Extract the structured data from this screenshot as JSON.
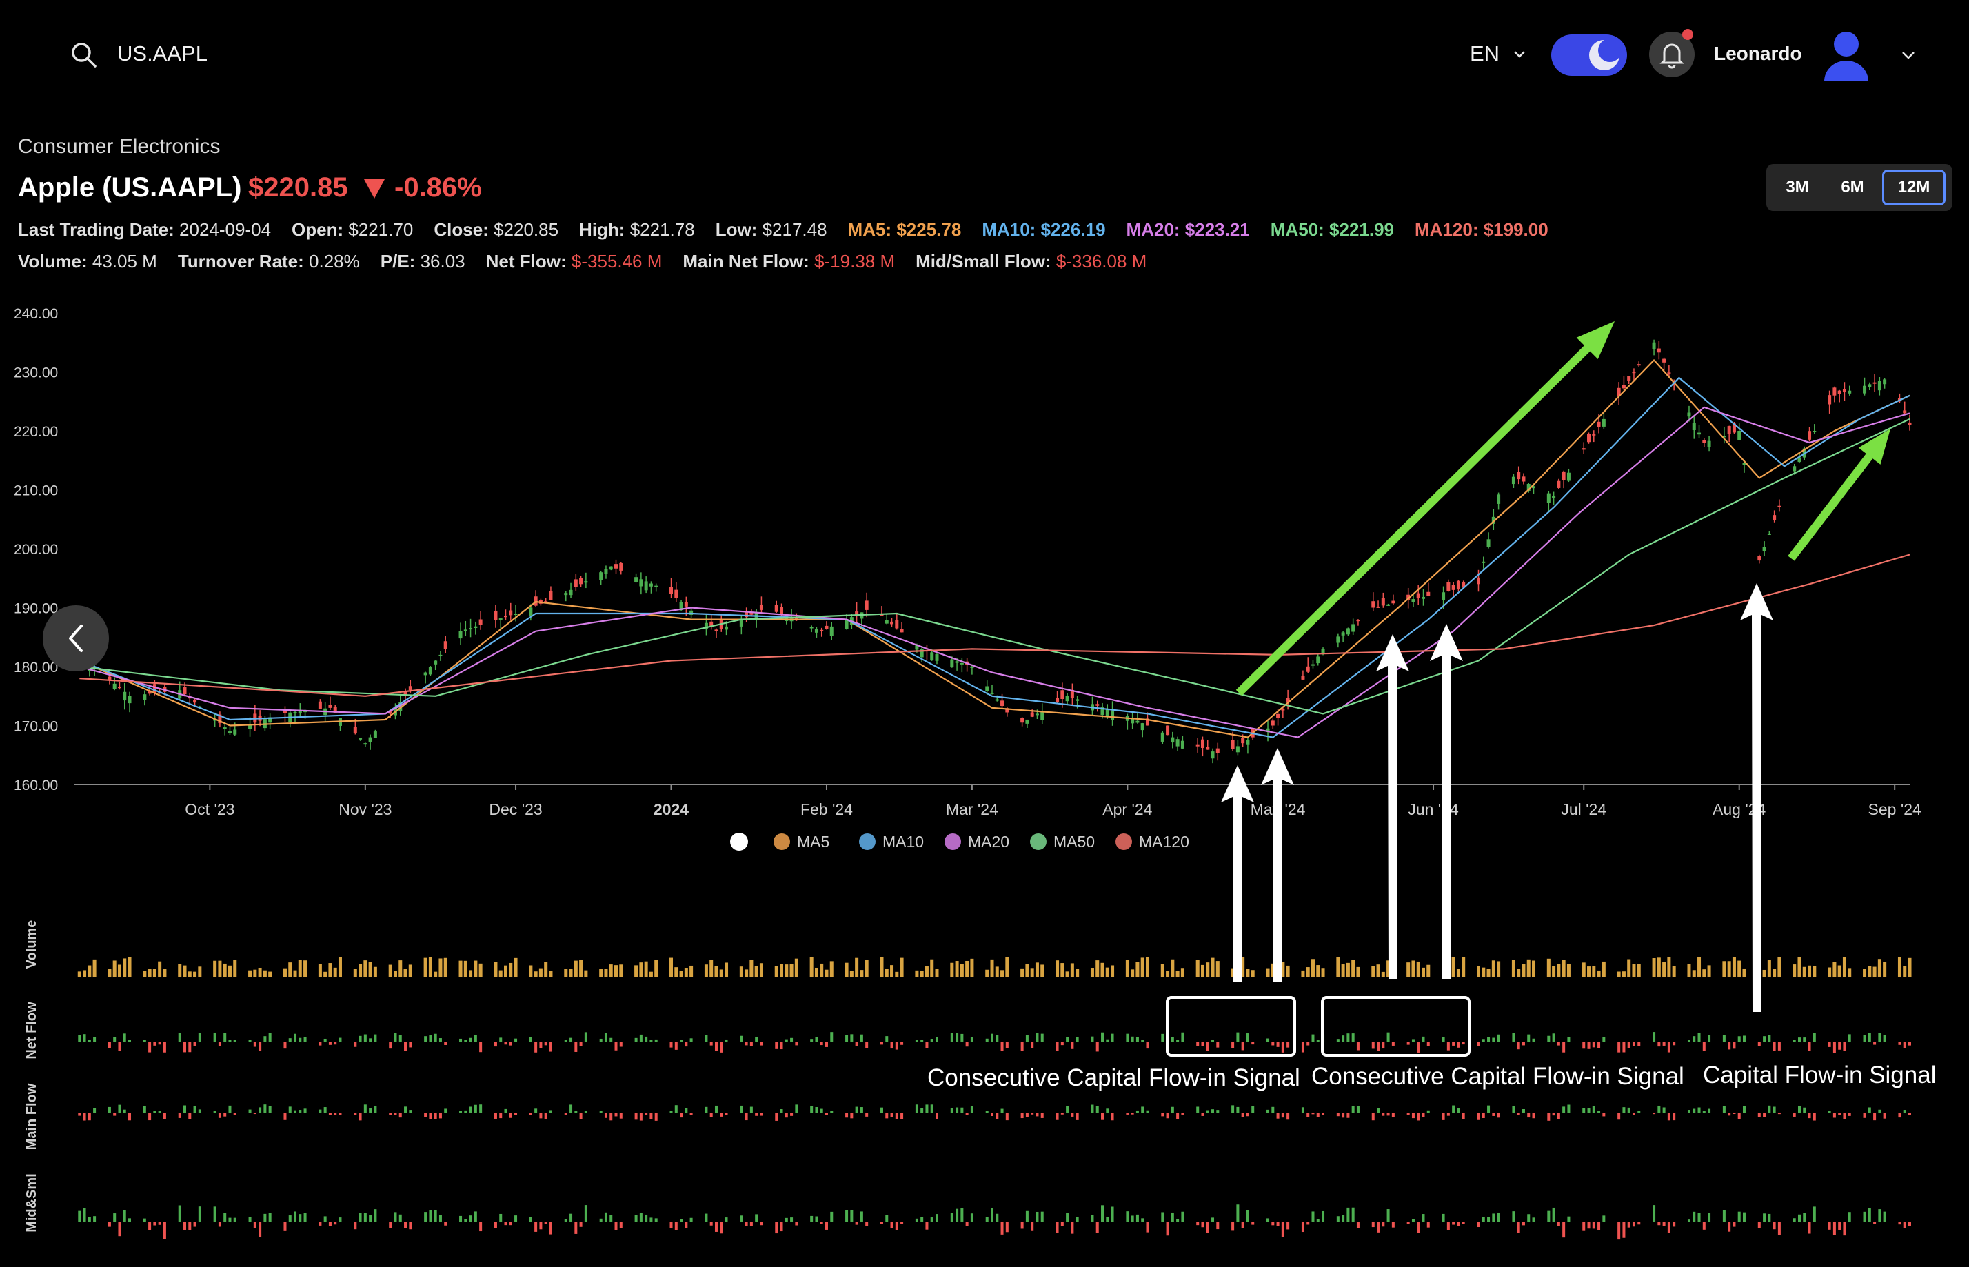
{
  "topbar": {
    "search_value": "US.AAPL",
    "language": "EN",
    "username": "Leonardo",
    "icons": [
      "search-icon",
      "chevron-down-icon",
      "moon-icon",
      "bell-icon",
      "avatar-icon",
      "chevron-down-icon"
    ]
  },
  "header": {
    "category": "Consumer Electronics",
    "title": "Apple (US.AAPL)",
    "price": "$220.85",
    "change": "-0.86%",
    "stats_row1": [
      {
        "label": "Last Trading Date:",
        "value": "2024-09-04"
      },
      {
        "label": "Open:",
        "value": "$221.70"
      },
      {
        "label": "Close:",
        "value": "$220.85"
      },
      {
        "label": "High:",
        "value": "$221.78"
      },
      {
        "label": "Low:",
        "value": "$217.48"
      }
    ],
    "ma_row": [
      {
        "text": "MA5: $225.78",
        "color": "#f0a14e"
      },
      {
        "text": "MA10: $226.19",
        "color": "#63b3ed"
      },
      {
        "text": "MA20: $223.21",
        "color": "#d67ee8"
      },
      {
        "text": "MA50: $221.99",
        "color": "#7bd88f"
      },
      {
        "text": "MA120: $199.00",
        "color": "#f07167"
      }
    ],
    "stats_row2": [
      {
        "label": "Volume:",
        "value": "43.05 M",
        "color": "#e0e0e0"
      },
      {
        "label": "Turnover Rate:",
        "value": "0.28%",
        "color": "#e0e0e0"
      },
      {
        "label": "P/E:",
        "value": "36.03",
        "color": "#e0e0e0"
      },
      {
        "label": "Net Flow:",
        "value": "$-355.46 M",
        "color": "#ef5350"
      },
      {
        "label": "Main Net Flow:",
        "value": "$-19.38 M",
        "color": "#ef5350"
      },
      {
        "label": "Mid/Small Flow:",
        "value": "$-336.08 M",
        "color": "#ef5350"
      }
    ]
  },
  "range_selector": {
    "options": [
      "3M",
      "6M",
      "12M"
    ],
    "selected": "12M"
  },
  "chart_data": {
    "type": "line",
    "title": "",
    "ylim": [
      160,
      240
    ],
    "y_ticks": [
      "240.00",
      "230.00",
      "220.00",
      "210.00",
      "200.00",
      "190.00",
      "180.00",
      "170.00",
      "160.00"
    ],
    "x_ticks": [
      "Oct '23",
      "Nov '23",
      "Dec '23",
      "2024",
      "Feb '24",
      "Mar '24",
      "Apr '24",
      "May '24",
      "Jun '24",
      "Jul '24",
      "Aug '24",
      "Sep '24"
    ],
    "x_tick_dates": [
      "2023-10-01",
      "2023-11-01",
      "2023-12-01",
      "2024-01-01",
      "2024-02-01",
      "2024-03-01",
      "2024-04-01",
      "2024-05-01",
      "2024-06-01",
      "2024-07-01",
      "2024-08-01",
      "2024-09-01"
    ],
    "date_range": [
      "2023-09-04",
      "2024-09-04"
    ],
    "price_points": [
      [
        "2023-09-05",
        182
      ],
      [
        "2023-09-15",
        175
      ],
      [
        "2023-09-25",
        176
      ],
      [
        "2023-10-05",
        169
      ],
      [
        "2023-10-15",
        172
      ],
      [
        "2023-10-25",
        173
      ],
      [
        "2023-11-01",
        167
      ],
      [
        "2023-11-10",
        176
      ],
      [
        "2023-11-20",
        186
      ],
      [
        "2023-12-01",
        189
      ],
      [
        "2023-12-10",
        192
      ],
      [
        "2023-12-20",
        197
      ],
      [
        "2023-12-31",
        193
      ],
      [
        "2024-01-10",
        186
      ],
      [
        "2024-01-20",
        190
      ],
      [
        "2024-01-31",
        186
      ],
      [
        "2024-02-10",
        190
      ],
      [
        "2024-02-20",
        183
      ],
      [
        "2024-03-01",
        180
      ],
      [
        "2024-03-10",
        170
      ],
      [
        "2024-03-20",
        175
      ],
      [
        "2024-03-31",
        172
      ],
      [
        "2024-04-10",
        168
      ],
      [
        "2024-04-20",
        165
      ],
      [
        "2024-04-30",
        170
      ],
      [
        "2024-05-10",
        183
      ],
      [
        "2024-05-20",
        190
      ],
      [
        "2024-05-31",
        192
      ],
      [
        "2024-06-10",
        194
      ],
      [
        "2024-06-15",
        213
      ],
      [
        "2024-06-25",
        209
      ],
      [
        "2024-07-05",
        222
      ],
      [
        "2024-07-15",
        235
      ],
      [
        "2024-07-25",
        218
      ],
      [
        "2024-08-01",
        220
      ],
      [
        "2024-08-05",
        198
      ],
      [
        "2024-08-12",
        214
      ],
      [
        "2024-08-20",
        226
      ],
      [
        "2024-08-31",
        229
      ],
      [
        "2024-09-04",
        221
      ]
    ],
    "series": [
      {
        "name": "MA5",
        "color": "#f0a14e",
        "points": [
          [
            "2023-09-05",
            181
          ],
          [
            "2023-10-05",
            170
          ],
          [
            "2023-11-05",
            171
          ],
          [
            "2023-12-05",
            191
          ],
          [
            "2024-01-05",
            188
          ],
          [
            "2024-02-05",
            188
          ],
          [
            "2024-03-05",
            173
          ],
          [
            "2024-04-05",
            171
          ],
          [
            "2024-04-25",
            168
          ],
          [
            "2024-05-25",
            190
          ],
          [
            "2024-06-20",
            210
          ],
          [
            "2024-07-15",
            232
          ],
          [
            "2024-08-05",
            212
          ],
          [
            "2024-08-20",
            220
          ],
          [
            "2024-09-04",
            226
          ]
        ]
      },
      {
        "name": "MA10",
        "color": "#63b3ed",
        "points": [
          [
            "2023-09-05",
            181
          ],
          [
            "2023-10-05",
            171
          ],
          [
            "2023-11-05",
            172
          ],
          [
            "2023-12-05",
            189
          ],
          [
            "2024-01-05",
            189
          ],
          [
            "2024-02-05",
            188
          ],
          [
            "2024-03-05",
            175
          ],
          [
            "2024-04-05",
            172
          ],
          [
            "2024-04-30",
            168
          ],
          [
            "2024-05-31",
            188
          ],
          [
            "2024-06-25",
            207
          ],
          [
            "2024-07-20",
            229
          ],
          [
            "2024-08-10",
            214
          ],
          [
            "2024-08-25",
            222
          ],
          [
            "2024-09-04",
            226
          ]
        ]
      },
      {
        "name": "MA20",
        "color": "#d67ee8",
        "points": [
          [
            "2023-09-05",
            180
          ],
          [
            "2023-10-05",
            173
          ],
          [
            "2023-11-05",
            172
          ],
          [
            "2023-12-05",
            186
          ],
          [
            "2024-01-05",
            190
          ],
          [
            "2024-02-05",
            188
          ],
          [
            "2024-03-05",
            179
          ],
          [
            "2024-04-05",
            173
          ],
          [
            "2024-05-05",
            168
          ],
          [
            "2024-06-05",
            186
          ],
          [
            "2024-06-30",
            206
          ],
          [
            "2024-07-25",
            224
          ],
          [
            "2024-08-15",
            218
          ],
          [
            "2024-09-04",
            223
          ]
        ]
      },
      {
        "name": "MA50",
        "color": "#7bd88f",
        "points": [
          [
            "2023-09-05",
            180
          ],
          [
            "2023-10-15",
            176
          ],
          [
            "2023-11-15",
            175
          ],
          [
            "2023-12-15",
            182
          ],
          [
            "2024-01-15",
            188
          ],
          [
            "2024-02-15",
            189
          ],
          [
            "2024-03-15",
            183
          ],
          [
            "2024-04-15",
            177
          ],
          [
            "2024-05-10",
            172
          ],
          [
            "2024-06-10",
            181
          ],
          [
            "2024-07-10",
            199
          ],
          [
            "2024-08-10",
            212
          ],
          [
            "2024-09-04",
            222
          ]
        ]
      },
      {
        "name": "MA120",
        "color": "#f07167",
        "points": [
          [
            "2023-09-05",
            178
          ],
          [
            "2023-11-01",
            175
          ],
          [
            "2024-01-01",
            181
          ],
          [
            "2024-03-01",
            183
          ],
          [
            "2024-05-01",
            182
          ],
          [
            "2024-06-15",
            183
          ],
          [
            "2024-07-15",
            187
          ],
          [
            "2024-08-15",
            194
          ],
          [
            "2024-09-04",
            199
          ]
        ]
      }
    ],
    "legend": [
      "MA5",
      "MA10",
      "MA20",
      "MA50",
      "MA120"
    ],
    "legend_placement": "bottom",
    "sub_panels": [
      "Volume",
      "Net Flow",
      "Main Flow",
      "Mid&Sml"
    ]
  },
  "annotations": {
    "signal1": "Consecutive Capital Flow-in Signal",
    "signal2": "Consecutive Capital Flow-in Signal",
    "signal3": "Capital Flow-in Signal"
  },
  "colors": {
    "up": "#4caf50",
    "down": "#ef5350",
    "volume": "#d9a441",
    "accent": "#3a47e6"
  }
}
